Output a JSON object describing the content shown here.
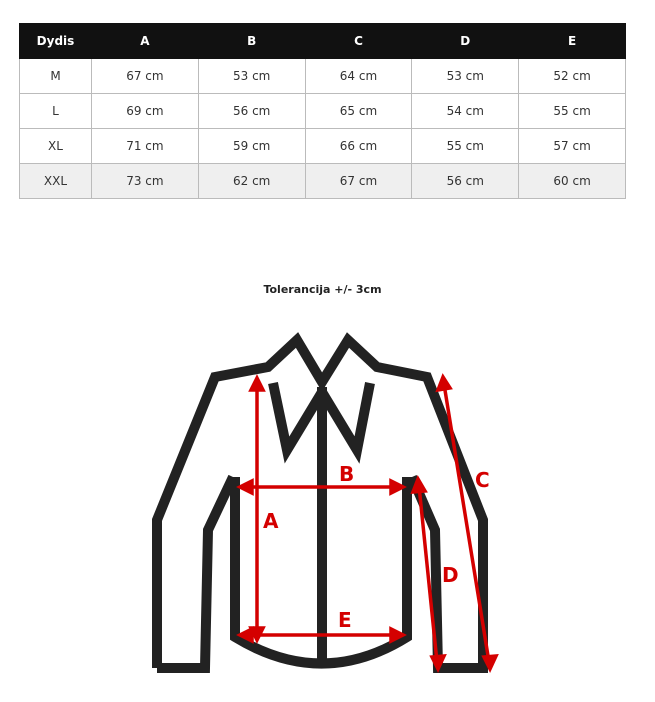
{
  "size_table": {
    "headers": [
      "Dydis",
      "A",
      "B",
      "C",
      "D",
      "E"
    ],
    "rows": [
      [
        "M",
        "67 cm",
        "53 cm",
        "64 cm",
        "53 cm",
        "52 cm"
      ],
      [
        "L",
        "69 cm",
        "56 cm",
        "65 cm",
        "54 cm",
        "55 cm"
      ],
      [
        "XL",
        "71 cm",
        "59 cm",
        "66 cm",
        "55 cm",
        "57 cm"
      ],
      [
        "XXL",
        "73 cm",
        "62 cm",
        "67 cm",
        "56 cm",
        "60 cm"
      ]
    ]
  },
  "tolerance": "Tolerancija +/- 3cm",
  "diagram": {
    "labels": {
      "a": "A",
      "b": "B",
      "c": "C",
      "d": "D",
      "e": "E"
    },
    "outline_color": "#222222",
    "measure_color": "#d40000"
  }
}
